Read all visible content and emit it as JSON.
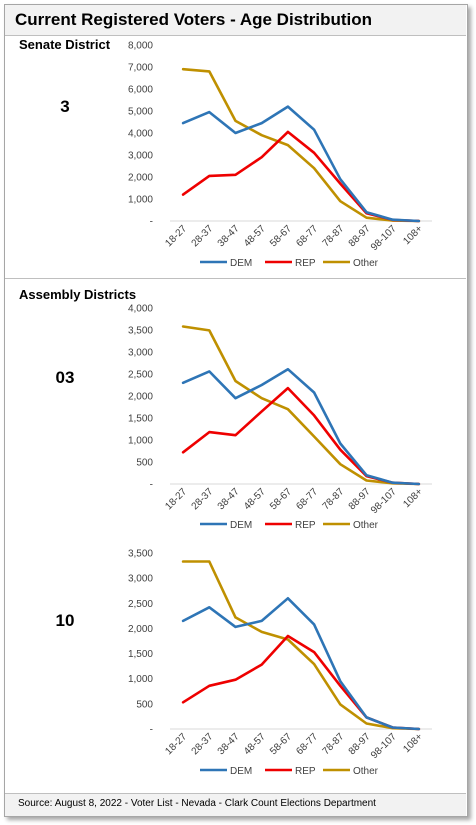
{
  "title": "Current Registered Voters - Age Distribution",
  "senate_label": "Senate District",
  "assembly_label": "Assembly Districts",
  "source": "Source: August 8, 2022 - Voter List - Nevada - Clark Count Elections Department",
  "colors": {
    "DEM": "#2e75b6",
    "REP": "#ee0000",
    "Other": "#bf9000"
  },
  "chart_data": [
    {
      "type": "line",
      "district": "3",
      "categories": [
        "18-27",
        "28-37",
        "38-47",
        "48-57",
        "58-67",
        "68-77",
        "78-87",
        "88-97",
        "98-107",
        "108+"
      ],
      "series": [
        {
          "name": "DEM",
          "values": [
            4450,
            4950,
            4000,
            4450,
            5200,
            4150,
            1900,
            400,
            60,
            0
          ]
        },
        {
          "name": "REP",
          "values": [
            1200,
            2050,
            2100,
            2900,
            4050,
            3100,
            1700,
            350,
            50,
            0
          ]
        },
        {
          "name": "Other",
          "values": [
            6900,
            6800,
            4550,
            3900,
            3450,
            2400,
            900,
            150,
            20,
            0
          ]
        }
      ],
      "yticks": [
        "-",
        "1,000",
        "2,000",
        "3,000",
        "4,000",
        "5,000",
        "6,000",
        "7,000",
        "8,000"
      ],
      "ylim": [
        0,
        8000
      ],
      "legend": "bottom",
      "grid": false
    },
    {
      "type": "line",
      "district": "03",
      "categories": [
        "18-27",
        "28-37",
        "38-47",
        "48-57",
        "58-67",
        "68-77",
        "78-87",
        "88-97",
        "98-107",
        "108+"
      ],
      "series": [
        {
          "name": "DEM",
          "values": [
            2300,
            2560,
            1950,
            2250,
            2610,
            2080,
            920,
            200,
            30,
            0
          ]
        },
        {
          "name": "REP",
          "values": [
            720,
            1180,
            1110,
            1650,
            2180,
            1560,
            780,
            180,
            30,
            0
          ]
        },
        {
          "name": "Other",
          "values": [
            3580,
            3490,
            2340,
            1950,
            1700,
            1080,
            450,
            80,
            15,
            0
          ]
        }
      ],
      "yticks": [
        "-",
        "500",
        "1,000",
        "1,500",
        "2,000",
        "2,500",
        "3,000",
        "3,500",
        "4,000"
      ],
      "ylim": [
        0,
        4000
      ],
      "legend": "bottom",
      "grid": false
    },
    {
      "type": "line",
      "district": "10",
      "categories": [
        "18-27",
        "28-37",
        "38-47",
        "48-57",
        "58-67",
        "68-77",
        "78-87",
        "88-97",
        "98-107",
        "108+"
      ],
      "series": [
        {
          "name": "DEM",
          "values": [
            2150,
            2420,
            2030,
            2150,
            2600,
            2080,
            950,
            230,
            30,
            0
          ]
        },
        {
          "name": "REP",
          "values": [
            530,
            860,
            980,
            1280,
            1850,
            1530,
            860,
            230,
            30,
            0
          ]
        },
        {
          "name": "Other",
          "values": [
            3330,
            3330,
            2220,
            1930,
            1780,
            1290,
            490,
            110,
            15,
            0
          ]
        }
      ],
      "yticks": [
        "-",
        "500",
        "1,000",
        "1,500",
        "2,000",
        "2,500",
        "3,000",
        "3,500"
      ],
      "ylim": [
        0,
        3500
      ],
      "legend": "bottom",
      "grid": false
    }
  ]
}
